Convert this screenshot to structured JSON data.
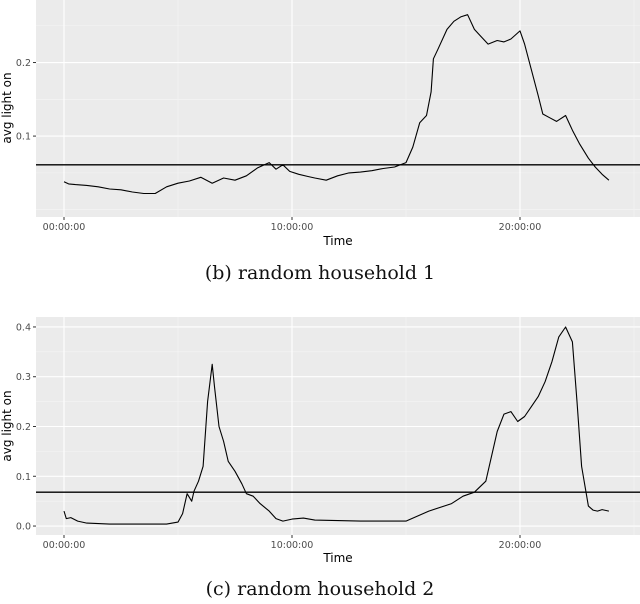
{
  "theme": {
    "panel_bg": "#ebebeb",
    "grid_major": "#ffffff",
    "grid_minor": "#f5f5f5",
    "line": "#000000",
    "tick_text": "#4d4d4d",
    "axis_title": "#000000"
  },
  "chart_data": [
    {
      "type": "line",
      "panel_id": "b",
      "caption": "(b) random household 1",
      "title": "",
      "xlabel": "Time",
      "ylabel": "avg light on",
      "x_ticks": [
        "00:00:00",
        "10:00:00",
        "20:00:00"
      ],
      "x_tick_hours": [
        0,
        10,
        20
      ],
      "y_ticks": [
        "0.1",
        "0.2"
      ],
      "y_tick_values": [
        0.1,
        0.2
      ],
      "xlim_hours": [
        -1.2,
        25.2
      ],
      "ylim": [
        -0.01,
        0.285
      ],
      "grid": true,
      "hline": {
        "value": 0.061,
        "label": ""
      },
      "series": [
        {
          "name": "avg light on",
          "x_hours": [
            0,
            0.2,
            0.5,
            1,
            1.5,
            2,
            2.5,
            3,
            3.5,
            4,
            4.5,
            5,
            5.5,
            6,
            6.5,
            7,
            7.5,
            8,
            8.5,
            9,
            9.3,
            9.6,
            9.9,
            10.3,
            10.7,
            11,
            11.5,
            12,
            12.5,
            13,
            13.5,
            14,
            14.5,
            15,
            15.3,
            15.6,
            15.9,
            16.1,
            16.2,
            16.4,
            16.8,
            17.1,
            17.4,
            17.7,
            18,
            18.3,
            18.6,
            19,
            19.3,
            19.6,
            20,
            20.2,
            20.5,
            20.8,
            21,
            21.3,
            21.6,
            22,
            22.3,
            22.6,
            23,
            23.3,
            23.6,
            23.9
          ],
          "values": [
            0.038,
            0.035,
            0.034,
            0.033,
            0.031,
            0.028,
            0.027,
            0.024,
            0.022,
            0.022,
            0.031,
            0.036,
            0.039,
            0.044,
            0.036,
            0.043,
            0.04,
            0.046,
            0.057,
            0.064,
            0.055,
            0.061,
            0.052,
            0.048,
            0.045,
            0.043,
            0.04,
            0.046,
            0.05,
            0.051,
            0.053,
            0.056,
            0.058,
            0.064,
            0.085,
            0.118,
            0.128,
            0.16,
            0.205,
            0.218,
            0.245,
            0.256,
            0.262,
            0.265,
            0.245,
            0.235,
            0.225,
            0.23,
            0.228,
            0.232,
            0.243,
            0.225,
            0.19,
            0.155,
            0.13,
            0.125,
            0.12,
            0.128,
            0.108,
            0.09,
            0.07,
            0.058,
            0.048,
            0.04
          ]
        }
      ]
    },
    {
      "type": "line",
      "panel_id": "c",
      "caption": "(c) random household 2",
      "title": "",
      "xlabel": "Time",
      "ylabel": "avg light on",
      "x_ticks": [
        "00:00:00",
        "10:00:00",
        "20:00:00"
      ],
      "x_tick_hours": [
        0,
        10,
        20
      ],
      "y_ticks": [
        "0.0",
        "0.1",
        "0.2",
        "0.3",
        "0.4"
      ],
      "y_tick_values": [
        0.0,
        0.1,
        0.2,
        0.3,
        0.4
      ],
      "xlim_hours": [
        -1.2,
        25.2
      ],
      "ylim": [
        -0.018,
        0.42
      ],
      "grid": true,
      "hline": {
        "value": 0.068,
        "label": ""
      },
      "series": [
        {
          "name": "avg light on",
          "x_hours": [
            0,
            0.1,
            0.3,
            0.6,
            1,
            1.5,
            2,
            3,
            4,
            4.5,
            5,
            5.2,
            5.4,
            5.6,
            5.7,
            5.9,
            6.1,
            6.3,
            6.5,
            6.6,
            6.8,
            7,
            7.2,
            7.5,
            7.8,
            8,
            8.3,
            8.6,
            9,
            9.3,
            9.6,
            10,
            10.5,
            11,
            12,
            13,
            14,
            15,
            16,
            17,
            17.5,
            18,
            18.5,
            19,
            19.3,
            19.6,
            19.9,
            20.2,
            20.5,
            20.8,
            21.1,
            21.4,
            21.7,
            22,
            22.3,
            22.5,
            22.7,
            23,
            23.2,
            23.4,
            23.6,
            23.9
          ],
          "values": [
            0.03,
            0.015,
            0.017,
            0.01,
            0.006,
            0.005,
            0.004,
            0.004,
            0.004,
            0.004,
            0.008,
            0.025,
            0.065,
            0.05,
            0.07,
            0.09,
            0.12,
            0.25,
            0.325,
            0.28,
            0.2,
            0.17,
            0.13,
            0.11,
            0.085,
            0.065,
            0.06,
            0.045,
            0.03,
            0.015,
            0.01,
            0.014,
            0.016,
            0.012,
            0.011,
            0.01,
            0.01,
            0.01,
            0.03,
            0.045,
            0.06,
            0.068,
            0.09,
            0.19,
            0.225,
            0.23,
            0.21,
            0.22,
            0.24,
            0.26,
            0.29,
            0.33,
            0.38,
            0.4,
            0.37,
            0.25,
            0.12,
            0.04,
            0.032,
            0.03,
            0.033,
            0.03
          ]
        }
      ]
    }
  ]
}
